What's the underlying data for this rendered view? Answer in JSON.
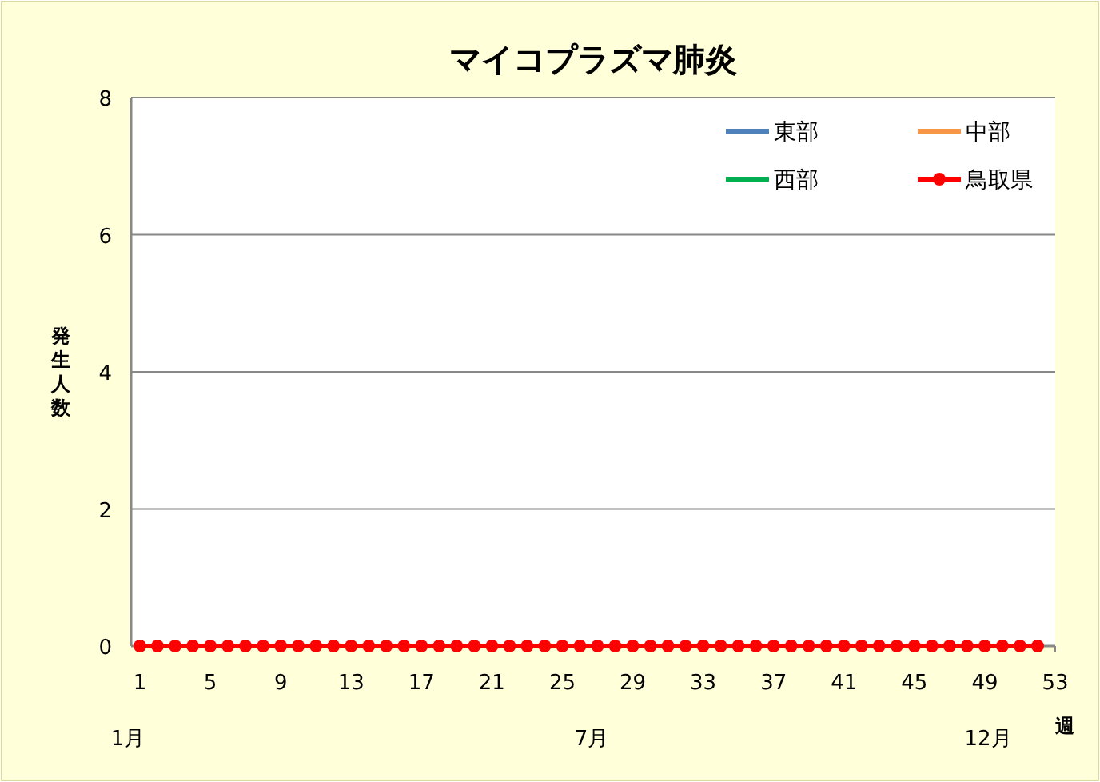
{
  "chart_data": {
    "type": "line",
    "title": "マイコプラズマ肺炎",
    "xlabel": "週",
    "ylabel": "発生人数",
    "x": [
      1,
      2,
      3,
      4,
      5,
      6,
      7,
      8,
      9,
      10,
      11,
      12,
      13,
      14,
      15,
      16,
      17,
      18,
      19,
      20,
      21,
      22,
      23,
      24,
      25,
      26,
      27,
      28,
      29,
      30,
      31,
      32,
      33,
      34,
      35,
      36,
      37,
      38,
      39,
      40,
      41,
      42,
      43,
      44,
      45,
      46,
      47,
      48,
      49,
      50,
      51,
      52
    ],
    "series": [
      {
        "name": "東部",
        "color": "#4f81bd",
        "marker": "none",
        "values": [
          null,
          null,
          null,
          null,
          null,
          null,
          null,
          null,
          null,
          null,
          null,
          null,
          null,
          null,
          null,
          null,
          null,
          null,
          null,
          null,
          null,
          null,
          null,
          null,
          null,
          null,
          null,
          null,
          null,
          null,
          null,
          null,
          null,
          null,
          null,
          null,
          null,
          null,
          null,
          null,
          null,
          null,
          null,
          null,
          null,
          null,
          null,
          null,
          null,
          null,
          null,
          null
        ]
      },
      {
        "name": "中部",
        "color": "#f79646",
        "marker": "none",
        "values": [
          null,
          null,
          null,
          null,
          null,
          null,
          null,
          null,
          null,
          null,
          null,
          null,
          null,
          null,
          null,
          null,
          null,
          null,
          null,
          null,
          null,
          null,
          null,
          null,
          null,
          null,
          null,
          null,
          null,
          null,
          null,
          null,
          null,
          null,
          null,
          null,
          null,
          null,
          null,
          null,
          null,
          null,
          null,
          null,
          null,
          null,
          null,
          null,
          null,
          null,
          null,
          null
        ]
      },
      {
        "name": "西部",
        "color": "#00b050",
        "marker": "none",
        "values": [
          null,
          null,
          null,
          null,
          null,
          null,
          null,
          null,
          null,
          null,
          null,
          null,
          null,
          null,
          null,
          null,
          null,
          null,
          null,
          null,
          null,
          null,
          null,
          null,
          null,
          null,
          null,
          null,
          null,
          null,
          null,
          null,
          null,
          null,
          null,
          null,
          null,
          null,
          null,
          null,
          null,
          null,
          null,
          null,
          null,
          null,
          null,
          null,
          null,
          null,
          null,
          null
        ]
      },
      {
        "name": "鳥取県",
        "color": "#ff0000",
        "marker": "circle",
        "values": [
          0,
          0,
          0,
          0,
          0,
          0,
          0,
          0,
          0,
          0,
          0,
          0,
          0,
          0,
          0,
          0,
          0,
          0,
          0,
          0,
          0,
          0,
          0,
          0,
          0,
          0,
          0,
          0,
          0,
          0,
          0,
          0,
          0,
          0,
          0,
          0,
          0,
          0,
          0,
          0,
          0,
          0,
          0,
          0,
          0,
          0,
          0,
          0,
          0,
          0,
          0,
          0
        ]
      }
    ],
    "xlim": [
      0.5,
      53
    ],
    "xticks": [
      1,
      5,
      9,
      13,
      17,
      21,
      25,
      29,
      33,
      37,
      41,
      45,
      49,
      53
    ],
    "ylim": [
      0,
      8
    ],
    "yticks": [
      0,
      2,
      4,
      6,
      8
    ],
    "grid": "y",
    "legend": "top right",
    "annotations": [
      "1月",
      "7月",
      "12月"
    ]
  }
}
